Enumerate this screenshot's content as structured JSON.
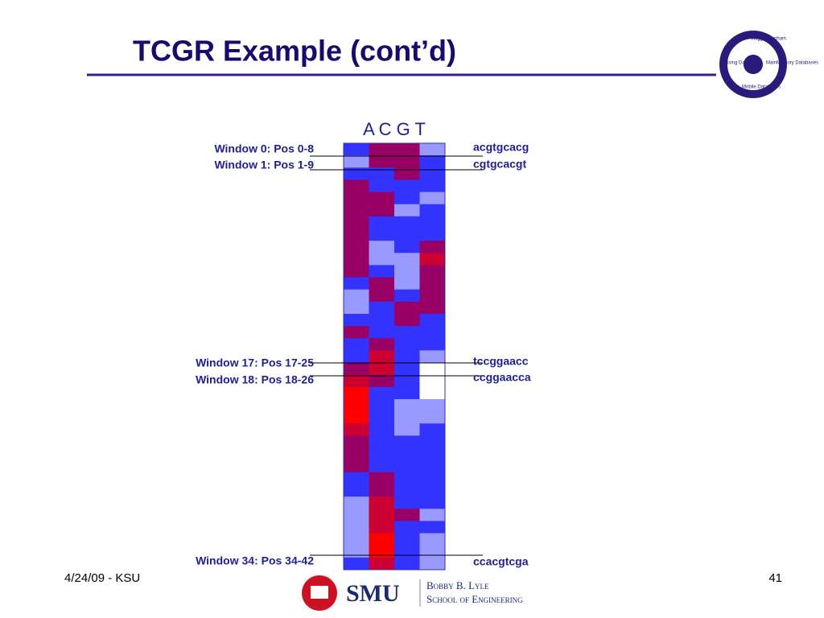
{
  "title": "TCGR Example (cont’d)",
  "column_header": "A C G T",
  "windows": [
    {
      "label": "Window 0:  Pos 0-8",
      "sequence": "acgtgcacg"
    },
    {
      "label": "Window 1:  Pos 1-9",
      "sequence": "cgtgcacgt"
    },
    {
      "label": "Window 17:  Pos 17-25",
      "sequence": "tccggaacc"
    },
    {
      "label": "Window 18:  Pos 18-26",
      "sequence": "ccggaacca"
    },
    {
      "label": "Window 34:  Pos 34-42",
      "sequence": "ccacgtcga"
    }
  ],
  "heatmap": {
    "rows": [
      [
        "#3333ff",
        "#990066",
        "#990066",
        "#9999ff"
      ],
      [
        "#9999ff",
        "#990066",
        "#990066",
        "#3333ff"
      ],
      [
        "#3333ff",
        "#3333ff",
        "#990066",
        "#3333ff"
      ],
      [
        "#990066",
        "#3333ff",
        "#3333ff",
        "#3333ff"
      ],
      [
        "#990066",
        "#990066",
        "#3333ff",
        "#9999ff"
      ],
      [
        "#990066",
        "#990066",
        "#9999ff",
        "#3333ff"
      ],
      [
        "#990066",
        "#3333ff",
        "#3333ff",
        "#3333ff"
      ],
      [
        "#990066",
        "#3333ff",
        "#3333ff",
        "#3333ff"
      ],
      [
        "#990066",
        "#9999ff",
        "#3333ff",
        "#990066"
      ],
      [
        "#990066",
        "#9999ff",
        "#9999ff",
        "#cc0033"
      ],
      [
        "#990066",
        "#3333ff",
        "#9999ff",
        "#990066"
      ],
      [
        "#3333ff",
        "#990066",
        "#9999ff",
        "#990066"
      ],
      [
        "#9999ff",
        "#990066",
        "#3333ff",
        "#990066"
      ],
      [
        "#9999ff",
        "#3333ff",
        "#990066",
        "#990066"
      ],
      [
        "#3333ff",
        "#3333ff",
        "#990066",
        "#3333ff"
      ],
      [
        "#990066",
        "#3333ff",
        "#3333ff",
        "#3333ff"
      ],
      [
        "#3333ff",
        "#990066",
        "#3333ff",
        "#3333ff"
      ],
      [
        "#3333ff",
        "#cc0033",
        "#3333ff",
        "#9999ff"
      ],
      [
        "#990066",
        "#cc0033",
        "#3333ff",
        "#ffffff"
      ],
      [
        "#cc0033",
        "#990066",
        "#3333ff",
        "#ffffff"
      ],
      [
        "#ff0000",
        "#3333ff",
        "#3333ff",
        "#ffffff"
      ],
      [
        "#ff0000",
        "#3333ff",
        "#9999ff",
        "#9999ff"
      ],
      [
        "#ff0000",
        "#3333ff",
        "#9999ff",
        "#9999ff"
      ],
      [
        "#cc0033",
        "#3333ff",
        "#9999ff",
        "#3333ff"
      ],
      [
        "#990066",
        "#3333ff",
        "#3333ff",
        "#3333ff"
      ],
      [
        "#990066",
        "#3333ff",
        "#3333ff",
        "#3333ff"
      ],
      [
        "#990066",
        "#3333ff",
        "#3333ff",
        "#3333ff"
      ],
      [
        "#3333ff",
        "#990066",
        "#3333ff",
        "#3333ff"
      ],
      [
        "#3333ff",
        "#990066",
        "#3333ff",
        "#3333ff"
      ],
      [
        "#9999ff",
        "#cc0033",
        "#3333ff",
        "#3333ff"
      ],
      [
        "#9999ff",
        "#cc0033",
        "#990066",
        "#9999ff"
      ],
      [
        "#9999ff",
        "#cc0033",
        "#3333ff",
        "#3333ff"
      ],
      [
        "#9999ff",
        "#ff0000",
        "#3333ff",
        "#9999ff"
      ],
      [
        "#9999ff",
        "#ff0000",
        "#3333ff",
        "#9999ff"
      ],
      [
        "#3333ff",
        "#cc0033",
        "#3333ff",
        "#9999ff"
      ]
    ]
  },
  "footer": {
    "date": "4/24/09 - KSU",
    "page": "41"
  },
  "logo": {
    "items": [
      "Maggie Dunham",
      "Missing Data",
      "MainMemory Databases",
      "Mobile Databases"
    ]
  },
  "school": {
    "name": "SMU",
    "line1": "Bobby B. Lyle",
    "line2": "School of Engineering"
  }
}
